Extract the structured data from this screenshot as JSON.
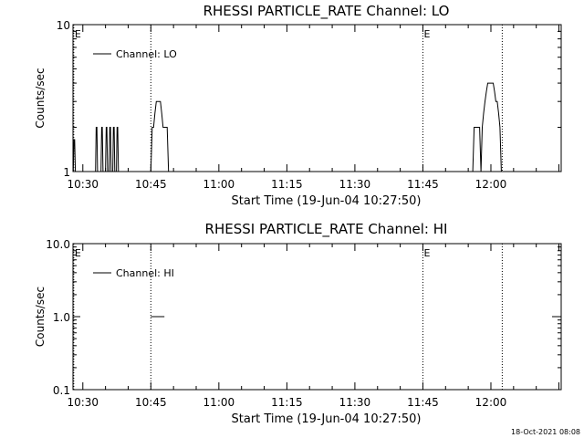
{
  "chart_data": [
    {
      "type": "line",
      "title": "RHESSI PARTICLE_RATE Channel: LO",
      "xlabel": "Start Time (19-Jun-04 10:27:50)",
      "ylabel": "Counts/sec",
      "yscale": "log",
      "ylim": [
        1,
        10
      ],
      "y_tick_labels": [
        "1",
        "10"
      ],
      "x_tick_labels": [
        "10:30",
        "10:45",
        "11:00",
        "11:15",
        "11:30",
        "11:45",
        "12:00"
      ],
      "x_tick_values_min": [
        30,
        45,
        60,
        75,
        90,
        105,
        120
      ],
      "xlim_min": [
        27.83,
        135.5
      ],
      "legend": {
        "label": "Channel: LO",
        "placement": "top-left"
      },
      "event_markers": [
        {
          "x_min": 28.0,
          "label": "E"
        },
        {
          "x_min": 105.0,
          "label": "E"
        }
      ],
      "dotted_lines_min": [
        28.0,
        45.0,
        105.0,
        122.5
      ],
      "series": [
        {
          "x": [
            27.9,
            28.05,
            28.2,
            28.35,
            28.5,
            32.8,
            32.95,
            33.1,
            33.25,
            33.4,
            34.0,
            34.15,
            34.3,
            34.45,
            34.6,
            35.0,
            35.15,
            35.3,
            35.45,
            35.6,
            35.8,
            35.95,
            36.1,
            36.25,
            36.4,
            36.6,
            36.75,
            36.9,
            37.05,
            37.2,
            37.4,
            37.55,
            37.7,
            37.85,
            38.0,
            45.0,
            45.3,
            45.6,
            45.9,
            46.2,
            46.5,
            46.8,
            47.1,
            47.4,
            47.7,
            48.0,
            48.3,
            48.6,
            48.9,
            49.2,
            49.5,
            116.0,
            116.3,
            116.6,
            116.9,
            117.2,
            117.5,
            117.8,
            118.1,
            118.4,
            118.7,
            119.0,
            119.3,
            119.6,
            119.9,
            120.2,
            120.5,
            120.8,
            121.1,
            121.4,
            121.7,
            122.0,
            122.3,
            122.6
          ],
          "y": [
            1,
            1.65,
            1.65,
            1,
            1,
            1,
            2,
            2,
            1,
            1,
            1,
            2,
            2,
            1,
            1,
            1,
            2,
            2,
            1,
            1,
            1,
            2,
            2,
            1,
            1,
            1,
            2,
            2,
            1,
            1,
            1,
            2,
            2,
            1,
            1,
            1,
            2,
            2,
            2.5,
            3,
            3,
            3,
            3,
            2.5,
            2,
            2,
            2,
            2,
            1,
            1,
            1,
            1,
            2,
            2,
            2,
            2,
            2,
            1,
            2,
            2.5,
            3,
            3.5,
            4,
            4,
            4,
            4,
            4,
            3.5,
            3,
            3,
            2.5,
            2,
            1,
            1
          ]
        }
      ]
    },
    {
      "type": "line",
      "title": "RHESSI PARTICLE_RATE Channel: HI",
      "xlabel": "Start Time (19-Jun-04 10:27:50)",
      "ylabel": "Counts/sec",
      "yscale": "log",
      "ylim": [
        0.1,
        10
      ],
      "y_tick_labels": [
        "0.1",
        "1.0",
        "10.0"
      ],
      "x_tick_labels": [
        "10:30",
        "10:45",
        "11:00",
        "11:15",
        "11:30",
        "11:45",
        "12:00"
      ],
      "x_tick_values_min": [
        30,
        45,
        60,
        75,
        90,
        105,
        120
      ],
      "xlim_min": [
        27.83,
        135.5
      ],
      "legend": {
        "label": "Channel: HI",
        "placement": "top-left"
      },
      "event_markers": [
        {
          "x_min": 28.0,
          "label": "E"
        },
        {
          "x_min": 105.0,
          "label": "E"
        }
      ],
      "dotted_lines_min": [
        28.0,
        45.0,
        105.0,
        122.5
      ],
      "series": [
        {
          "x": [
            45.0,
            48.0
          ],
          "y": [
            1.0,
            1.0
          ]
        }
      ]
    }
  ],
  "footer": {
    "timestamp": "18-Oct-2021 08:08"
  }
}
